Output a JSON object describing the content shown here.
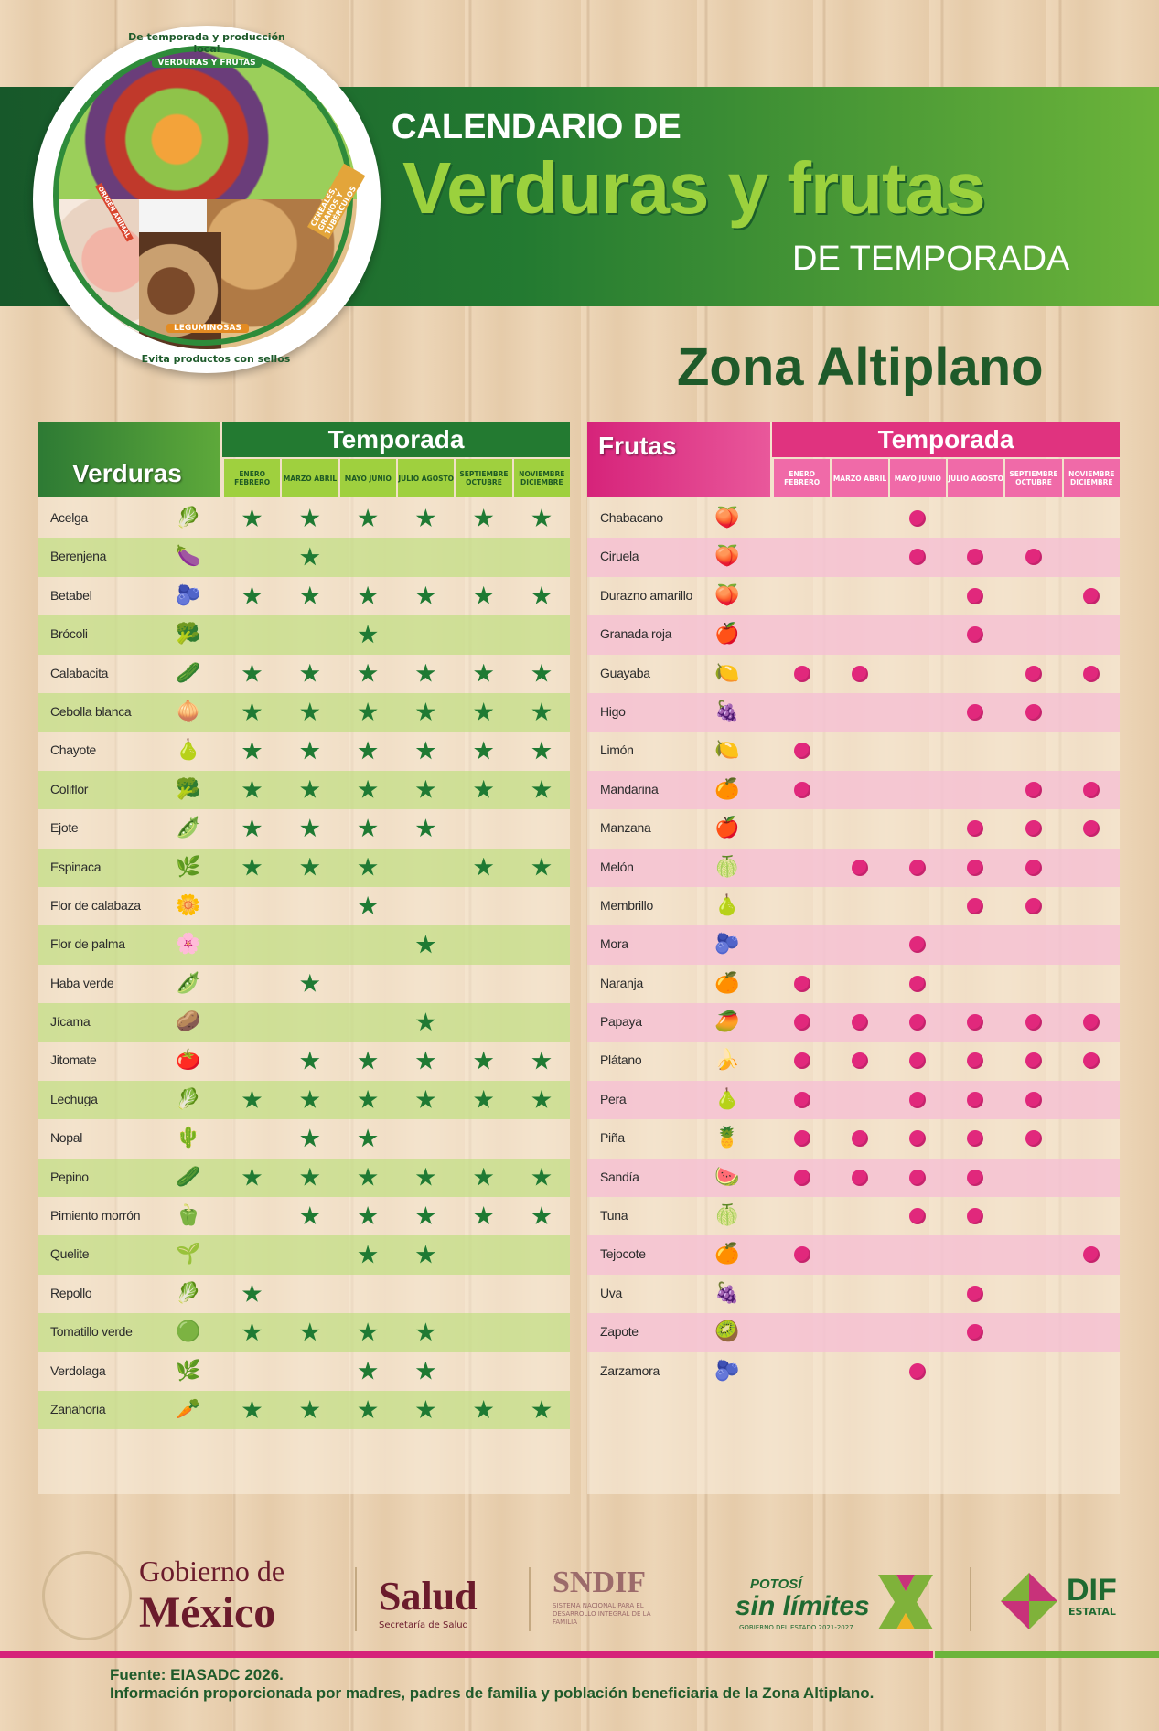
{
  "header": {
    "title_line1": "CALENDARIO DE",
    "title_line2": "Verduras y frutas",
    "title_line3": "DE TEMPORADA",
    "zone": "Zona Altiplano"
  },
  "plate": {
    "top_text": "De temporada y producción local",
    "vegetables_label": "VERDURAS Y FRUTAS",
    "legumes_label": "LEGUMINOSAS",
    "cereals_label": "CEREALES, GRANOS Y TUBÉRCULOS",
    "animal_label": "ORIGEN ANIMAL",
    "bottom_text": "Evita productos con sellos"
  },
  "months": [
    "ENERO FEBRERO",
    "MARZO ABRIL",
    "MAYO JUNIO",
    "JULIO AGOSTO",
    "SEPTIEMBRE OCTUBRE",
    "NOVIEMBRE DICIEMBRE"
  ],
  "verduras": {
    "title": "Verduras",
    "season": "Temporada",
    "items": [
      {
        "name": "Acelga",
        "icon": "🥬",
        "m": [
          1,
          1,
          1,
          1,
          1,
          1
        ]
      },
      {
        "name": "Berenjena",
        "icon": "🍆",
        "m": [
          0,
          1,
          0,
          0,
          0,
          0
        ]
      },
      {
        "name": "Betabel",
        "icon": "🫐",
        "m": [
          1,
          1,
          1,
          1,
          1,
          1
        ]
      },
      {
        "name": "Brócoli",
        "icon": "🥦",
        "m": [
          0,
          0,
          1,
          0,
          0,
          0
        ]
      },
      {
        "name": "Calabacita",
        "icon": "🥒",
        "m": [
          1,
          1,
          1,
          1,
          1,
          1
        ]
      },
      {
        "name": "Cebolla blanca",
        "icon": "🧅",
        "m": [
          1,
          1,
          1,
          1,
          1,
          1
        ]
      },
      {
        "name": "Chayote",
        "icon": "🍐",
        "m": [
          1,
          1,
          1,
          1,
          1,
          1
        ]
      },
      {
        "name": "Coliflor",
        "icon": "🥦",
        "m": [
          1,
          1,
          1,
          1,
          1,
          1
        ]
      },
      {
        "name": "Ejote",
        "icon": "🫛",
        "m": [
          1,
          1,
          1,
          1,
          0,
          0
        ]
      },
      {
        "name": "Espinaca",
        "icon": "🌿",
        "m": [
          1,
          1,
          1,
          0,
          1,
          1
        ]
      },
      {
        "name": "Flor de calabaza",
        "icon": "🌼",
        "m": [
          0,
          0,
          1,
          0,
          0,
          0
        ]
      },
      {
        "name": "Flor de palma",
        "icon": "🌸",
        "m": [
          0,
          0,
          0,
          1,
          0,
          0
        ]
      },
      {
        "name": "Haba verde",
        "icon": "🫛",
        "m": [
          0,
          1,
          0,
          0,
          0,
          0
        ]
      },
      {
        "name": "Jícama",
        "icon": "🥔",
        "m": [
          0,
          0,
          0,
          1,
          0,
          0
        ]
      },
      {
        "name": "Jitomate",
        "icon": "🍅",
        "m": [
          0,
          1,
          1,
          1,
          1,
          1
        ]
      },
      {
        "name": "Lechuga",
        "icon": "🥬",
        "m": [
          1,
          1,
          1,
          1,
          1,
          1
        ]
      },
      {
        "name": "Nopal",
        "icon": "🌵",
        "m": [
          0,
          1,
          1,
          0,
          0,
          0
        ]
      },
      {
        "name": "Pepino",
        "icon": "🥒",
        "m": [
          1,
          1,
          1,
          1,
          1,
          1
        ]
      },
      {
        "name": "Pimiento morrón",
        "icon": "🫑",
        "m": [
          0,
          1,
          1,
          1,
          1,
          1
        ]
      },
      {
        "name": "Quelite",
        "icon": "🌱",
        "m": [
          0,
          0,
          1,
          1,
          0,
          0
        ]
      },
      {
        "name": "Repollo",
        "icon": "🥬",
        "m": [
          1,
          0,
          0,
          0,
          0,
          0
        ]
      },
      {
        "name": "Tomatillo verde",
        "icon": "🟢",
        "m": [
          1,
          1,
          1,
          1,
          0,
          0
        ]
      },
      {
        "name": "Verdolaga",
        "icon": "🌿",
        "m": [
          0,
          0,
          1,
          1,
          0,
          0
        ]
      },
      {
        "name": "Zanahoria",
        "icon": "🥕",
        "m": [
          1,
          1,
          1,
          1,
          1,
          1
        ]
      }
    ]
  },
  "frutas": {
    "title": "Frutas",
    "season": "Temporada",
    "items": [
      {
        "name": "Chabacano",
        "icon": "🍑",
        "m": [
          0,
          0,
          1,
          0,
          0,
          0
        ]
      },
      {
        "name": "Ciruela",
        "icon": "🍑",
        "m": [
          0,
          0,
          1,
          1,
          1,
          0
        ]
      },
      {
        "name": "Durazno amarillo",
        "icon": "🍑",
        "m": [
          0,
          0,
          0,
          1,
          0,
          1
        ]
      },
      {
        "name": "Granada roja",
        "icon": "🍎",
        "m": [
          0,
          0,
          0,
          1,
          0,
          0
        ]
      },
      {
        "name": "Guayaba",
        "icon": "🍋",
        "m": [
          1,
          1,
          0,
          0,
          1,
          1
        ]
      },
      {
        "name": "Higo",
        "icon": "🍇",
        "m": [
          0,
          0,
          0,
          1,
          1,
          0
        ]
      },
      {
        "name": "Limón",
        "icon": "🍋",
        "m": [
          1,
          0,
          0,
          0,
          0,
          0
        ]
      },
      {
        "name": "Mandarina",
        "icon": "🍊",
        "m": [
          1,
          0,
          0,
          0,
          1,
          1
        ]
      },
      {
        "name": "Manzana",
        "icon": "🍎",
        "m": [
          0,
          0,
          0,
          1,
          1,
          1
        ]
      },
      {
        "name": "Melón",
        "icon": "🍈",
        "m": [
          0,
          1,
          1,
          1,
          1,
          0
        ]
      },
      {
        "name": "Membrillo",
        "icon": "🍐",
        "m": [
          0,
          0,
          0,
          1,
          1,
          0
        ]
      },
      {
        "name": "Mora",
        "icon": "🫐",
        "m": [
          0,
          0,
          1,
          0,
          0,
          0
        ]
      },
      {
        "name": "Naranja",
        "icon": "🍊",
        "m": [
          1,
          0,
          1,
          0,
          0,
          0
        ]
      },
      {
        "name": "Papaya",
        "icon": "🥭",
        "m": [
          1,
          1,
          1,
          1,
          1,
          1
        ]
      },
      {
        "name": "Plátano",
        "icon": "🍌",
        "m": [
          1,
          1,
          1,
          1,
          1,
          1
        ]
      },
      {
        "name": "Pera",
        "icon": "🍐",
        "m": [
          1,
          0,
          1,
          1,
          1,
          0
        ]
      },
      {
        "name": "Piña",
        "icon": "🍍",
        "m": [
          1,
          1,
          1,
          1,
          1,
          0
        ]
      },
      {
        "name": "Sandía",
        "icon": "🍉",
        "m": [
          1,
          1,
          1,
          1,
          0,
          0
        ]
      },
      {
        "name": "Tuna",
        "icon": "🍈",
        "m": [
          0,
          0,
          1,
          1,
          0,
          0
        ]
      },
      {
        "name": "Tejocote",
        "icon": "🍊",
        "m": [
          1,
          0,
          0,
          0,
          0,
          1
        ]
      },
      {
        "name": "Uva",
        "icon": "🍇",
        "m": [
          0,
          0,
          0,
          1,
          0,
          0
        ]
      },
      {
        "name": "Zapote",
        "icon": "🥝",
        "m": [
          0,
          0,
          0,
          1,
          0,
          0
        ]
      },
      {
        "name": "Zarzamora",
        "icon": "🫐",
        "m": [
          0,
          0,
          1,
          0,
          0,
          0
        ]
      }
    ]
  },
  "footer": {
    "gob_line1": "Gobierno de",
    "gob_line2": "México",
    "salud": "Salud",
    "salud_sub": "Secretaría de Salud",
    "sndif": "SNDIF",
    "sndif_sub": "SISTEMA NACIONAL PARA EL DESARROLLO INTEGRAL DE LA FAMILIA",
    "potosi": "POTOSÍ",
    "sin_limites": "sin límites",
    "potosi_sub": "GOBIERNO DEL ESTADO 2021-2027",
    "dif": "DIF",
    "dif_sub": "ESTATAL",
    "source": "Fuente: EIASADC 2026.",
    "info": "Información proporcionada por madres, padres de familia y población beneficiaria de la Zona Altiplano."
  },
  "colors": {
    "green_dark": "#237a31",
    "green_light": "#9fd03e",
    "pink": "#e1287c"
  }
}
